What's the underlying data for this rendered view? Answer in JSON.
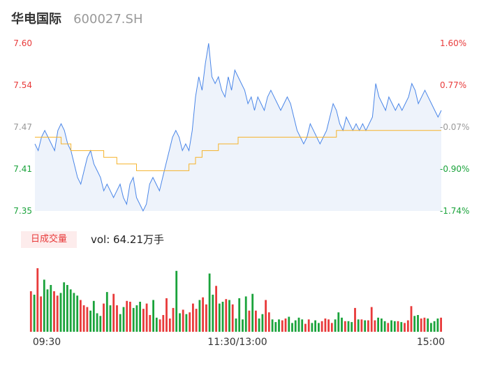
{
  "header": {
    "stock_name": "华电国际",
    "stock_code": "600027.SH"
  },
  "volume_panel": {
    "badge": "日成交量",
    "volume_text": "vol: 64.21万手"
  },
  "colors": {
    "price_line": "#4a86e8",
    "avg_line": "#f5b32b",
    "area_fill": "#eef3fb",
    "up": "#e83a3a",
    "down": "#1aa33b",
    "neutral": "#999999"
  },
  "chart_data": [
    {
      "type": "line",
      "title": "",
      "xlabel": "",
      "ylabel": "",
      "ylim": [
        7.35,
        7.6
      ],
      "y_ticks": [
        "7.60",
        "7.54",
        "7.47",
        "7.41",
        "7.35"
      ],
      "y_ticks_right": [
        "1.60%",
        "0.77%",
        "-0.07%",
        "-0.90%",
        "-1.74%"
      ],
      "series": [
        {
          "key": "price",
          "values": [
            7.45,
            7.44,
            7.46,
            7.47,
            7.46,
            7.45,
            7.44,
            7.47,
            7.48,
            7.47,
            7.45,
            7.44,
            7.42,
            7.4,
            7.39,
            7.41,
            7.43,
            7.44,
            7.42,
            7.41,
            7.4,
            7.38,
            7.39,
            7.38,
            7.37,
            7.38,
            7.39,
            7.37,
            7.36,
            7.39,
            7.4,
            7.37,
            7.36,
            7.35,
            7.36,
            7.39,
            7.4,
            7.39,
            7.38,
            7.4,
            7.42,
            7.44,
            7.46,
            7.47,
            7.46,
            7.44,
            7.45,
            7.44,
            7.47,
            7.52,
            7.55,
            7.53,
            7.57,
            7.6,
            7.55,
            7.54,
            7.55,
            7.53,
            7.52,
            7.55,
            7.53,
            7.56,
            7.55,
            7.54,
            7.53,
            7.51,
            7.52,
            7.5,
            7.52,
            7.51,
            7.5,
            7.52,
            7.53,
            7.52,
            7.51,
            7.5,
            7.51,
            7.52,
            7.51,
            7.49,
            7.47,
            7.46,
            7.45,
            7.46,
            7.48,
            7.47,
            7.46,
            7.45,
            7.46,
            7.47,
            7.49,
            7.51,
            7.5,
            7.48,
            7.47,
            7.49,
            7.48,
            7.47,
            7.48,
            7.47,
            7.48,
            7.47,
            7.48,
            7.49,
            7.54,
            7.52,
            7.51,
            7.5,
            7.52,
            7.51,
            7.5,
            7.51,
            7.5,
            7.51,
            7.52,
            7.54,
            7.53,
            7.51,
            7.52,
            7.53,
            7.52,
            7.51,
            7.5,
            7.49,
            7.5
          ]
        },
        {
          "key": "avg",
          "values": [
            7.46,
            7.46,
            7.46,
            7.46,
            7.46,
            7.46,
            7.46,
            7.46,
            7.45,
            7.45,
            7.45,
            7.44,
            7.44,
            7.44,
            7.44,
            7.44,
            7.44,
            7.44,
            7.44,
            7.44,
            7.44,
            7.43,
            7.43,
            7.43,
            7.43,
            7.42,
            7.42,
            7.42,
            7.42,
            7.42,
            7.42,
            7.41,
            7.41,
            7.41,
            7.41,
            7.41,
            7.41,
            7.41,
            7.41,
            7.41,
            7.41,
            7.41,
            7.41,
            7.41,
            7.41,
            7.41,
            7.41,
            7.42,
            7.42,
            7.43,
            7.43,
            7.44,
            7.44,
            7.44,
            7.44,
            7.44,
            7.45,
            7.45,
            7.45,
            7.45,
            7.45,
            7.45,
            7.46,
            7.46,
            7.46,
            7.46,
            7.46,
            7.46,
            7.46,
            7.46,
            7.46,
            7.46,
            7.46,
            7.46,
            7.46,
            7.46,
            7.46,
            7.46,
            7.46,
            7.46,
            7.46,
            7.46,
            7.46,
            7.46,
            7.46,
            7.46,
            7.46,
            7.46,
            7.46,
            7.46,
            7.46,
            7.46,
            7.47,
            7.47,
            7.47,
            7.47,
            7.47,
            7.47,
            7.47,
            7.47,
            7.47,
            7.47,
            7.47,
            7.47,
            7.47,
            7.47,
            7.47,
            7.47,
            7.47,
            7.47,
            7.47,
            7.47,
            7.47,
            7.47,
            7.47,
            7.47,
            7.47,
            7.47,
            7.47,
            7.47,
            7.47,
            7.47,
            7.47,
            7.47,
            7.47
          ]
        }
      ]
    },
    {
      "type": "bar",
      "x_ticks": [
        "09:30",
        "11:30/13:00",
        "15:00"
      ],
      "series": [
        {
          "key": "volume",
          "values": [
            4.6,
            4.2,
            7.2,
            4.0,
            5.9,
            4.8,
            5.3,
            4.6,
            4.1,
            4.4,
            5.6,
            5.3,
            4.8,
            4.4,
            4.1,
            3.6,
            3.0,
            2.8,
            2.4,
            3.5,
            2.1,
            1.8,
            3.2,
            4.5,
            3.0,
            4.3,
            3.0,
            2.0,
            2.8,
            3.5,
            3.4,
            2.7,
            3.0,
            3.4,
            2.6,
            3.2,
            1.9,
            3.6,
            1.6,
            1.4,
            1.9,
            3.8,
            1.5,
            2.7,
            6.9,
            2.1,
            2.5,
            2.0,
            2.2,
            3.2,
            2.6,
            3.6,
            3.9,
            3.1,
            6.6,
            4.2,
            5.2,
            3.2,
            3.4,
            3.7,
            3.6,
            3.1,
            1.5,
            3.8,
            1.4,
            4.0,
            2.4,
            4.3,
            2.4,
            1.5,
            2.0,
            3.6,
            2.2,
            1.4,
            1.1,
            1.4,
            1.3,
            1.5,
            1.7,
            1.0,
            1.3,
            1.6,
            1.4,
            0.9,
            1.4,
            1.0,
            1.3,
            1.0,
            1.2,
            1.5,
            1.4,
            1.0,
            1.4,
            2.2,
            1.6,
            1.2,
            1.2,
            1.1,
            2.7,
            1.4,
            1.4,
            1.3,
            1.3,
            2.8,
            1.3,
            1.6,
            1.5,
            1.2,
            1.0,
            1.3,
            1.2,
            1.2,
            1.1,
            1.0,
            1.3,
            2.9,
            1.8,
            1.9,
            1.5,
            1.6,
            1.5,
            1.0,
            1.2,
            1.5,
            1.6
          ]
        }
      ]
    }
  ]
}
